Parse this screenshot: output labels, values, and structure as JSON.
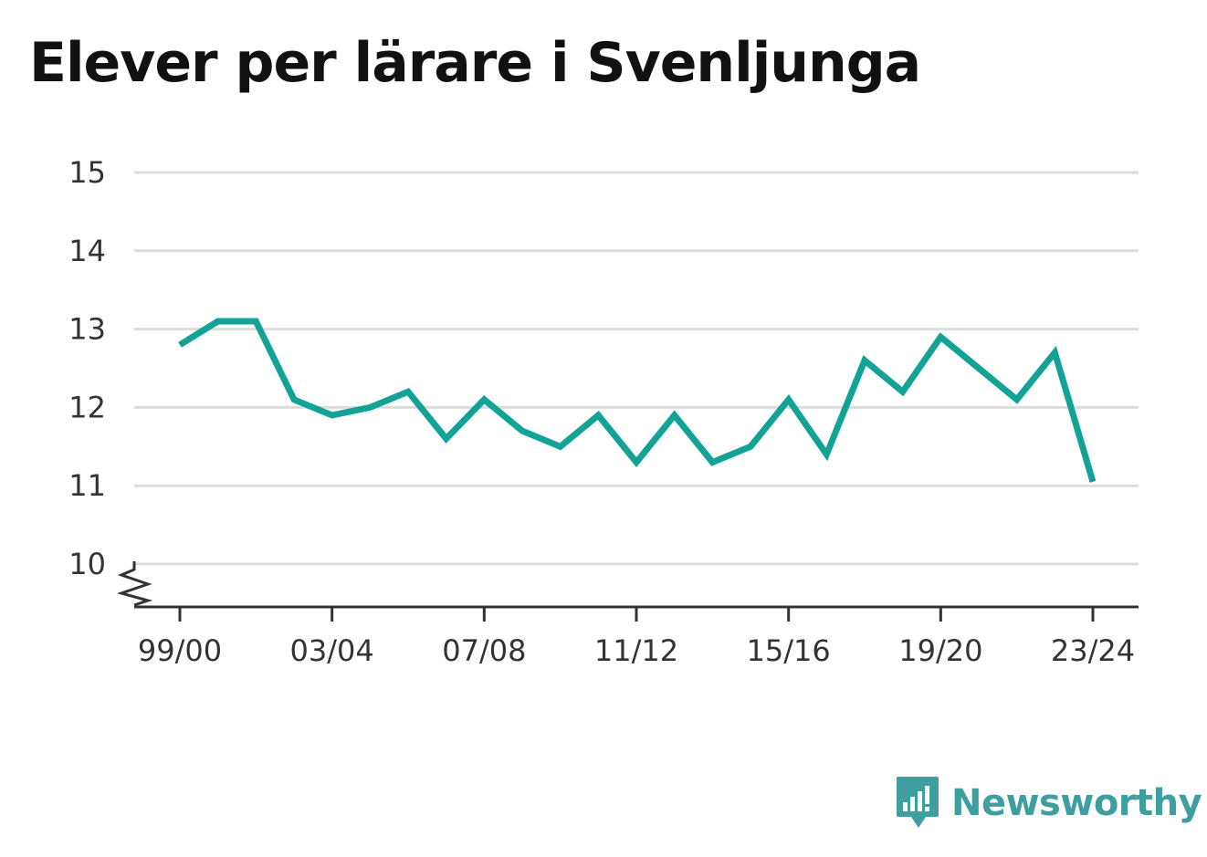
{
  "chart_data": {
    "type": "line",
    "title": "Elever per lärare i Svenljunga",
    "xlabel": "",
    "ylabel": "",
    "ylim": [
      10,
      15
    ],
    "y_axis_break": true,
    "grid": true,
    "legend": "none",
    "line_color": "#13a396",
    "x": [
      "99/00",
      "00/01",
      "01/02",
      "02/03",
      "03/04",
      "04/05",
      "05/06",
      "06/07",
      "07/08",
      "08/09",
      "09/10",
      "10/11",
      "11/12",
      "12/13",
      "13/14",
      "14/15",
      "15/16",
      "16/17",
      "17/18",
      "18/19",
      "19/20",
      "20/21",
      "21/22",
      "22/23",
      "23/24"
    ],
    "values": [
      12.8,
      13.1,
      13.1,
      12.1,
      11.9,
      12.0,
      12.2,
      11.6,
      12.1,
      11.7,
      11.5,
      11.9,
      11.3,
      11.9,
      11.3,
      11.5,
      12.1,
      11.4,
      12.6,
      12.2,
      12.9,
      12.5,
      12.1,
      12.7,
      11.05
    ],
    "y_ticks": [
      10,
      11,
      12,
      13,
      14,
      15
    ],
    "x_tick_labels": [
      "99/00",
      "03/04",
      "07/08",
      "11/12",
      "15/16",
      "19/20",
      "23/24"
    ]
  },
  "brand": {
    "name": "Newsworthy",
    "logo_icon": "bar-chart-speech-bubble-icon",
    "color": "#3e9ea0"
  }
}
